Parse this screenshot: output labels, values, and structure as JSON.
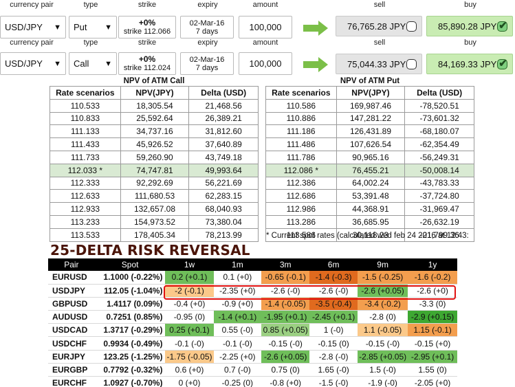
{
  "trades": [
    {
      "headers": {
        "currency_pair": "currency pair",
        "type": "type",
        "strike": "strike",
        "expiry": "expiry",
        "amount": "amount",
        "sell": "sell",
        "buy": "buy"
      },
      "currency_pair": "USD/JPY",
      "type": "Put",
      "strike_pct": "+0%",
      "strike_value": "strike 112.066",
      "expiry_date": "02-Mar-16",
      "expiry_days": "7 days",
      "amount": "100,000",
      "sell": "76,765.28 JPY",
      "buy": "85,890.28 JPY",
      "sell_checked": false,
      "buy_checked": true
    },
    {
      "headers": {
        "currency_pair": "currency pair",
        "type": "type",
        "strike": "strike",
        "expiry": "expiry",
        "amount": "amount",
        "sell": "sell",
        "buy": "buy"
      },
      "currency_pair": "USD/JPY",
      "type": "Call",
      "strike_pct": "+0%",
      "strike_value": "strike 112.024",
      "expiry_date": "02-Mar-16",
      "expiry_days": "7 days",
      "amount": "100,000",
      "sell": "75,044.33 JPY",
      "buy": "84,169.33 JPY",
      "sell_checked": false,
      "buy_checked": true
    }
  ],
  "npv_call": {
    "title": "NPV of ATM Call",
    "columns": [
      "Rate scenarios",
      "NPV(JPY)",
      "Delta (USD)"
    ],
    "rows": [
      [
        "110.533",
        "18,305.54",
        "21,468.56"
      ],
      [
        "110.833",
        "25,592.64",
        "26,389.21"
      ],
      [
        "111.133",
        "34,737.16",
        "31,812.60"
      ],
      [
        "111.433",
        "45,926.52",
        "37,640.89"
      ],
      [
        "111.733",
        "59,260.90",
        "43,749.18"
      ],
      [
        "112.033 *",
        "74,747.81",
        "49,993.64"
      ],
      [
        "112.333",
        "92,292.69",
        "56,221.69"
      ],
      [
        "112.633",
        "111,680.53",
        "62,283.15"
      ],
      [
        "112.933",
        "132,657.08",
        "68,040.93"
      ],
      [
        "113.233",
        "154,973.52",
        "73,380.04"
      ],
      [
        "113.533",
        "178,405.34",
        "78,213.99"
      ]
    ],
    "highlight_row": 5
  },
  "npv_put": {
    "title": "NPV of ATM Put",
    "columns": [
      "Rate scenarios",
      "NPV(JPY)",
      "Delta (USD)"
    ],
    "rows": [
      [
        "110.586",
        "169,987.46",
        "-78,520.51"
      ],
      [
        "110.886",
        "147,281.22",
        "-73,601.32"
      ],
      [
        "111.186",
        "126,431.89",
        "-68,180.07"
      ],
      [
        "111.486",
        "107,626.54",
        "-62,354.49"
      ],
      [
        "111.786",
        "90,965.16",
        "-56,249.31"
      ],
      [
        "112.086 *",
        "76,455.21",
        "-50,008.14"
      ],
      [
        "112.386",
        "64,002.24",
        "-43,783.33"
      ],
      [
        "112.686",
        "53,391.48",
        "-37,724.80"
      ],
      [
        "112.986",
        "44,368.91",
        "-31,969.47"
      ],
      [
        "113.286",
        "36,685.95",
        "-26,632.19"
      ],
      [
        "113.586",
        "30,118.23",
        "-21,799.36"
      ]
    ],
    "highlight_row": 5
  },
  "footnote": "* Current spot rates (calculated wed feb 24 2016 at 12:43:",
  "risk_reversal": {
    "title": "25-DELTA RISK REVERSAL",
    "columns": [
      "Pair",
      "Spot",
      "1w",
      "1m",
      "3m",
      "6m",
      "9m",
      "1y"
    ],
    "highlight_row": 1,
    "colors": {
      "g-dark": "#3ea832",
      "g-mid": "#6fbe5a",
      "g-light": "#9bd082",
      "o-dark": "#e06a1e",
      "o-mid": "#f39e4e",
      "o-light": "#fbc98a",
      "ring": "#e01010"
    },
    "rows": [
      {
        "pair": "EURUSD",
        "spot": "1.1000 (-0.22%)",
        "cells": [
          [
            "0.2 (+0.1)",
            "g-mid"
          ],
          [
            "0.1 (+0)",
            ""
          ],
          [
            "-0.65 (-0.1)",
            "o-mid"
          ],
          [
            "-1.4 (-0.3)",
            "o-dark"
          ],
          [
            "-1.5 (-0.25)",
            "o-mid"
          ],
          [
            "-1.6 (-0.2)",
            "o-mid"
          ]
        ]
      },
      {
        "pair": "USDJPY",
        "spot": "112.05 (-1.04%)",
        "cells": [
          [
            "-2 (-0.1)",
            "o-light"
          ],
          [
            "-2.35 (+0)",
            ""
          ],
          [
            "-2.6 (-0)",
            ""
          ],
          [
            "-2.6 (-0)",
            ""
          ],
          [
            "-2.6 (+0.05)",
            "g-mid"
          ],
          [
            "-2.6 (+0)",
            ""
          ]
        ]
      },
      {
        "pair": "GBPUSD",
        "spot": "1.4117 (0.09%)",
        "cells": [
          [
            "-0.4 (+0)",
            ""
          ],
          [
            "-0.9 (+0)",
            ""
          ],
          [
            "-1.4 (-0.05)",
            "o-mid"
          ],
          [
            "-3.5 (-0.4)",
            "o-dark"
          ],
          [
            "-3.4 (-0.2)",
            "o-mid"
          ],
          [
            "-3.3 (0)",
            ""
          ]
        ]
      },
      {
        "pair": "AUDUSD",
        "spot": "0.7251 (0.85%)",
        "cells": [
          [
            "-0.95 (0)",
            ""
          ],
          [
            "-1.4 (+0.1)",
            "g-mid"
          ],
          [
            "-1.95 (+0.1)",
            "g-mid"
          ],
          [
            "-2.45 (+0.1)",
            "g-mid"
          ],
          [
            "-2.8 (0)",
            ""
          ],
          [
            "-2.9 (+0.15)",
            "g-dark"
          ]
        ]
      },
      {
        "pair": "USDCAD",
        "spot": "1.3717 (-0.29%)",
        "cells": [
          [
            "0.25 (+0.1)",
            "g-mid"
          ],
          [
            "0.55 (-0)",
            ""
          ],
          [
            "0.85 (+0.05)",
            "g-light"
          ],
          [
            "1 (-0)",
            ""
          ],
          [
            "1.1 (-0.05)",
            "o-light"
          ],
          [
            "1.15 (-0.1)",
            "o-mid"
          ]
        ]
      },
      {
        "pair": "USDCHF",
        "spot": "0.9934 (-0.49%)",
        "cells": [
          [
            "-0.1 (-0)",
            ""
          ],
          [
            "-0.1 (-0)",
            ""
          ],
          [
            "-0.15 (-0)",
            ""
          ],
          [
            "-0.15 (0)",
            ""
          ],
          [
            "-0.15 (-0)",
            ""
          ],
          [
            "-0.15 (+0)",
            ""
          ]
        ]
      },
      {
        "pair": "EURJPY",
        "spot": "123.25 (-1.25%)",
        "cells": [
          [
            "-1.75 (-0.05)",
            "o-light"
          ],
          [
            "-2.25 (+0)",
            ""
          ],
          [
            "-2.6 (+0.05)",
            "g-mid"
          ],
          [
            "-2.8 (-0)",
            ""
          ],
          [
            "-2.85 (+0.05)",
            "g-mid"
          ],
          [
            "-2.95 (+0.1)",
            "g-mid"
          ]
        ]
      },
      {
        "pair": "EURGBP",
        "spot": "0.7792 (-0.32%)",
        "cells": [
          [
            "0.6 (+0)",
            ""
          ],
          [
            "0.7 (-0)",
            ""
          ],
          [
            "0.75 (0)",
            ""
          ],
          [
            "1.65 (-0)",
            ""
          ],
          [
            "1.5 (-0)",
            ""
          ],
          [
            "1.55 (0)",
            ""
          ]
        ]
      },
      {
        "pair": "EURCHF",
        "spot": "1.0927 (-0.70%)",
        "cells": [
          [
            "0 (+0)",
            ""
          ],
          [
            "-0.25 (0)",
            ""
          ],
          [
            "-0.8 (+0)",
            ""
          ],
          [
            "-1.5 (-0)",
            ""
          ],
          [
            "-1.9 (-0)",
            ""
          ],
          [
            "-2.05 (+0)",
            ""
          ]
        ]
      }
    ]
  },
  "icons": {
    "dropdown": "chevron-down-icon",
    "go": "arrow-right-icon",
    "check": "check-icon"
  }
}
